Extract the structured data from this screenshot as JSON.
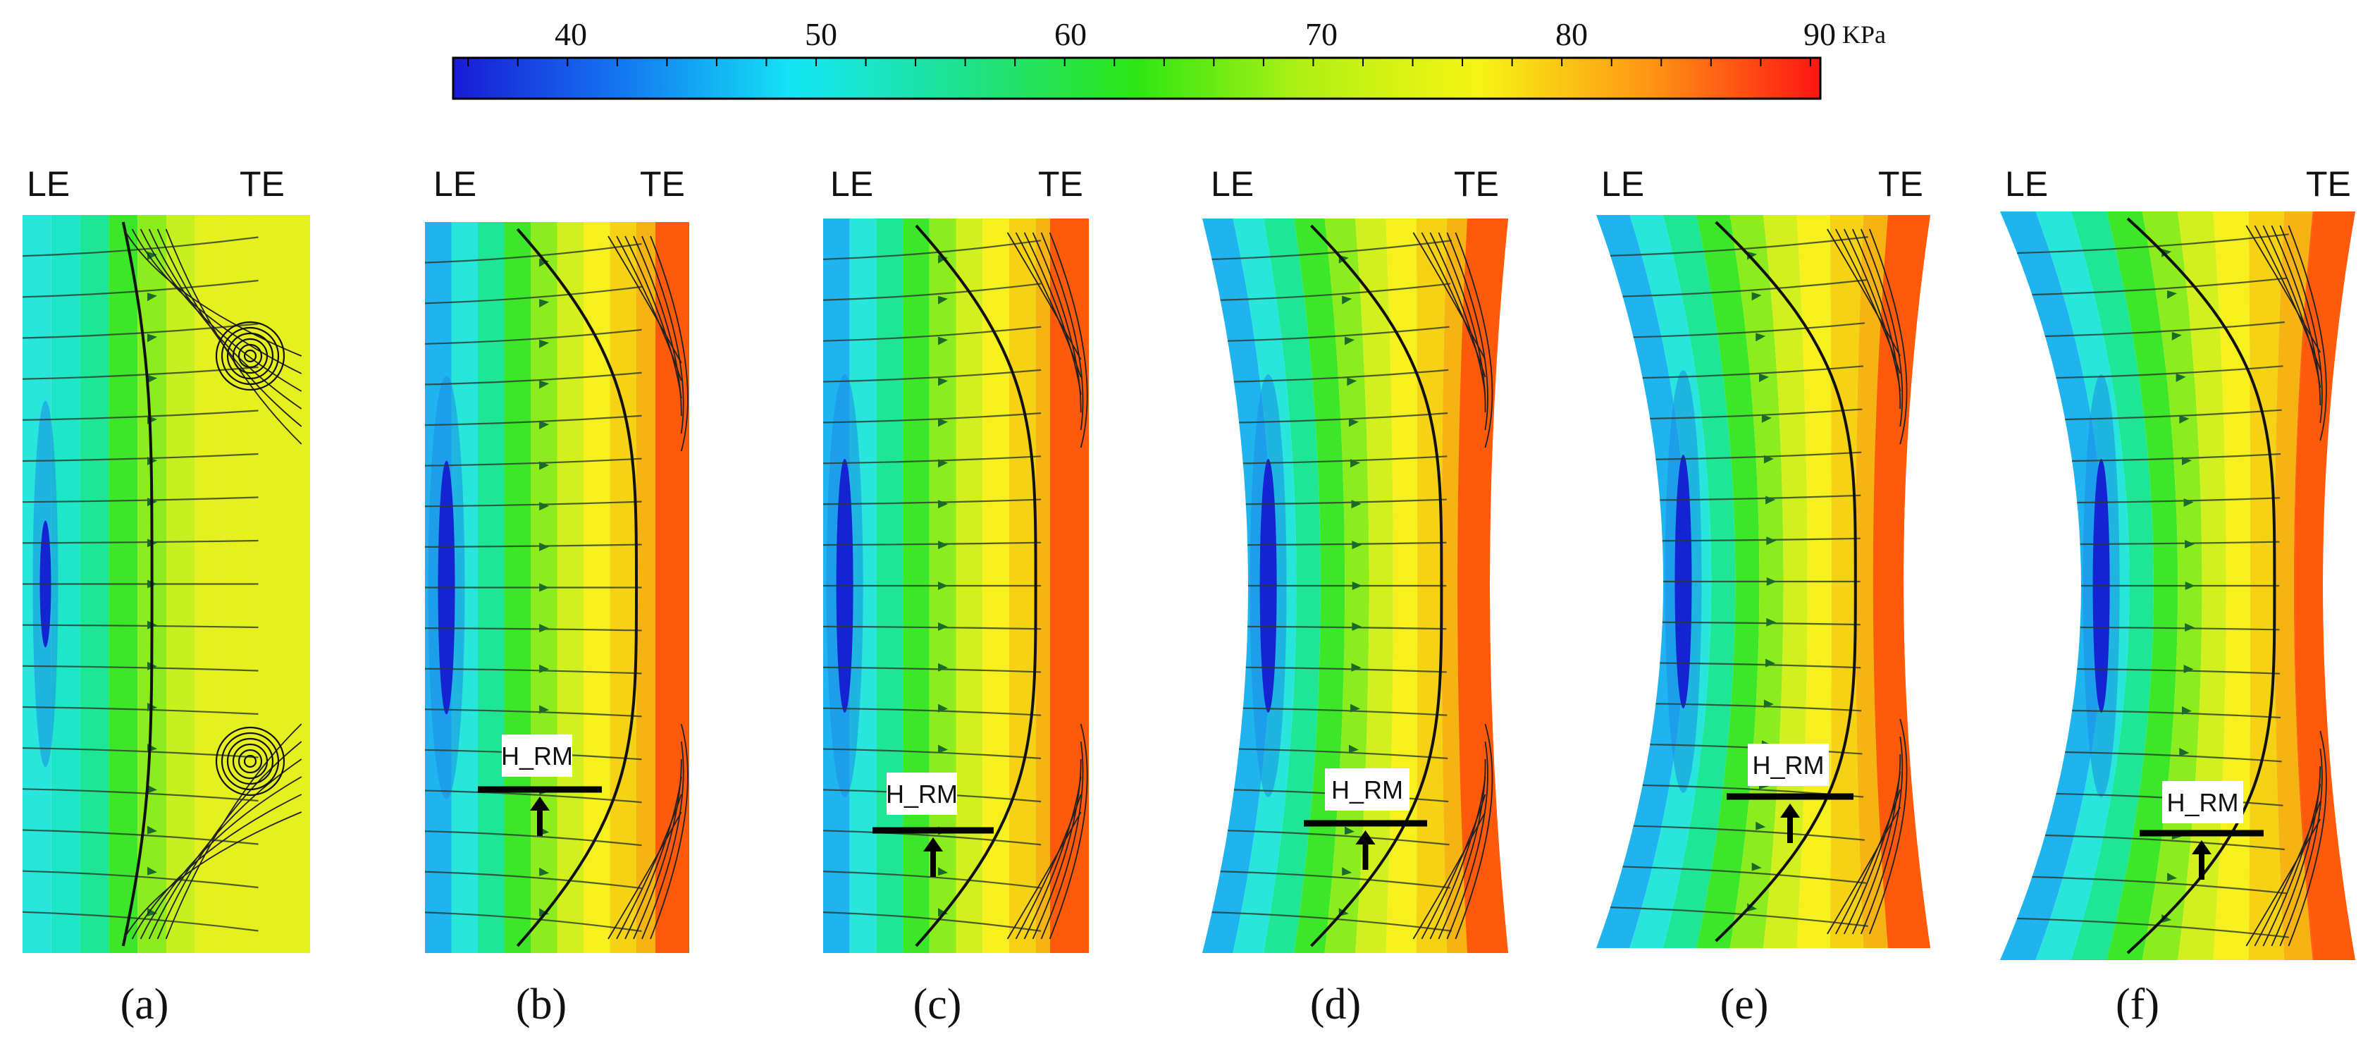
{
  "colorbar": {
    "tick_labels": [
      "40",
      "50",
      "60",
      "70",
      "80",
      "90"
    ],
    "unit": "KPa",
    "min": 35,
    "max": 90,
    "stops": [
      "#1a1ad6",
      "#1478f0",
      "#14e6f5",
      "#1ee18c",
      "#2ee614",
      "#b4f014",
      "#f5f514",
      "#ff9614",
      "#ff1414"
    ]
  },
  "panels": [
    {
      "id": "a",
      "caption": "(a)",
      "le": "LE",
      "te": "TE",
      "has_hrm": false,
      "vortices": true
    },
    {
      "id": "b",
      "caption": "(b)",
      "le": "LE",
      "te": "TE",
      "has_hrm": true,
      "hrm_label": "H_RM"
    },
    {
      "id": "c",
      "caption": "(c)",
      "le": "LE",
      "te": "TE",
      "has_hrm": true,
      "hrm_label": "H_RM"
    },
    {
      "id": "d",
      "caption": "(d)",
      "le": "LE",
      "te": "TE",
      "has_hrm": true,
      "hrm_label": "H_RM"
    },
    {
      "id": "e",
      "caption": "(e)",
      "le": "LE",
      "te": "TE",
      "has_hrm": true,
      "hrm_label": "H_RM"
    },
    {
      "id": "f",
      "caption": "(f)",
      "le": "LE",
      "te": "TE",
      "has_hrm": true,
      "hrm_label": "H_RM"
    }
  ],
  "band_colors": [
    "#0a1ad2",
    "#1a5cf0",
    "#1fb4f0",
    "#28e6dc",
    "#1ee696",
    "#3ce628",
    "#8cec1e",
    "#d2f01e",
    "#f5f01e",
    "#f5d214",
    "#ff6414"
  ]
}
